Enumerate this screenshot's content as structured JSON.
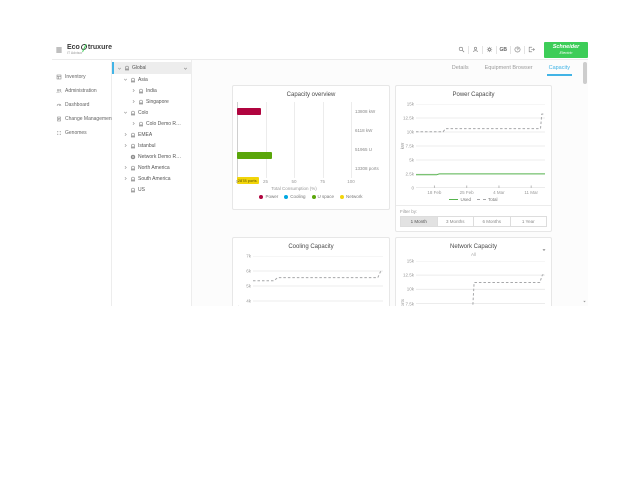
{
  "header": {
    "logo": {
      "brand_prefix": "Eco",
      "brand_suffix": "truxure",
      "sub": "IT Advisor"
    },
    "icons": [
      {
        "name": "search"
      },
      {
        "name": "user"
      },
      {
        "name": "settings"
      },
      {
        "name": "language",
        "label": "GB"
      },
      {
        "name": "help"
      },
      {
        "name": "logout"
      }
    ],
    "schneider": {
      "line1": "Schneider",
      "line2": "Electric"
    }
  },
  "sidebar": {
    "items": [
      {
        "label": "Inventory",
        "icon": "inventory"
      },
      {
        "label": "Administration",
        "icon": "administration"
      },
      {
        "label": "Dashboard",
        "icon": "dashboard"
      },
      {
        "label": "Change Management",
        "icon": "change-management"
      },
      {
        "label": "Genomes",
        "icon": "genomes"
      }
    ]
  },
  "tree": {
    "items": [
      {
        "label": "Global",
        "level": 0,
        "expander": "expanded",
        "icon": "location",
        "selected": true,
        "has_menu": true
      },
      {
        "label": "Asia",
        "level": 1,
        "expander": "expanded",
        "icon": "location"
      },
      {
        "label": "India",
        "level": 2,
        "expander": "collapsed",
        "icon": "location"
      },
      {
        "label": "Singapore",
        "level": 2,
        "expander": "collapsed",
        "icon": "location"
      },
      {
        "label": "Colo",
        "level": 1,
        "expander": "expanded",
        "icon": "location"
      },
      {
        "label": "Colo Demo Room",
        "level": 2,
        "expander": "collapsed",
        "icon": "location"
      },
      {
        "label": "EMEA",
        "level": 1,
        "expander": "collapsed",
        "icon": "location"
      },
      {
        "label": "Istanbul",
        "level": 1,
        "expander": "collapsed",
        "icon": "location"
      },
      {
        "label": "Network Demo Room",
        "level": 1,
        "expander": "none",
        "icon": "globe"
      },
      {
        "label": "North America",
        "level": 1,
        "expander": "collapsed",
        "icon": "location"
      },
      {
        "label": "South America",
        "level": 1,
        "expander": "collapsed",
        "icon": "location"
      },
      {
        "label": "US",
        "level": 1,
        "expander": "none",
        "icon": "location"
      }
    ]
  },
  "tabs": {
    "items": [
      {
        "label": "Details",
        "active": false
      },
      {
        "label": "Equipment Browser",
        "active": false
      },
      {
        "label": "Capacity",
        "active": true
      }
    ]
  },
  "colors": {
    "brand_green": "#3dcd58",
    "accent_blue": "#42b4e6",
    "power_red": "#b0043f",
    "cooling_blue": "#00a7e1",
    "uspace_green": "#5aa60a",
    "network_yellow": "#f2d50a",
    "total_gray": "#a6a7a9",
    "used_green": "#56b44d"
  },
  "chart_data": [
    {
      "id": "capacity_overview",
      "type": "bar",
      "orientation": "horizontal",
      "title": "Capacity overview",
      "categories": [
        "Power",
        "Cooling",
        "U space",
        "Network"
      ],
      "values_percent": [
        21,
        0,
        31,
        19
      ],
      "bar_colors": [
        "#b0043f",
        "#00a7e1",
        "#5aa60a",
        "#f2d50a"
      ],
      "bar_inner_labels": [
        "",
        "",
        "",
        "2878 ports"
      ],
      "capacity_labels": [
        "13808 kW",
        "6118 kW",
        "51965 U",
        "13308 ports"
      ],
      "xlabel": "Total Consumption (%)",
      "xlim": [
        0,
        100
      ],
      "xticks": [
        0,
        25,
        50,
        75,
        100
      ],
      "legend": [
        {
          "label": "Power",
          "color": "#b0043f"
        },
        {
          "label": "Cooling",
          "color": "#00a7e1"
        },
        {
          "label": "U space",
          "color": "#5aa60a"
        },
        {
          "label": "Network",
          "color": "#f2d50a"
        }
      ]
    },
    {
      "id": "power_capacity",
      "type": "line",
      "title": "Power Capacity",
      "ylabel": "kW",
      "ylim": [
        0,
        15000
      ],
      "yticks_top_down": [
        "15k",
        "12.5k",
        "10k",
        "7.5k",
        "5k",
        "2.5k",
        "0"
      ],
      "xticks": [
        {
          "pos": 0.143,
          "label": "18 Feb"
        },
        {
          "pos": 0.393,
          "label": "25 Feb"
        },
        {
          "pos": 0.643,
          "label": "4 Mar"
        },
        {
          "pos": 0.893,
          "label": "11 Mar"
        }
      ],
      "series": [
        {
          "name": "Used",
          "style": "solid",
          "color": "#56b44d",
          "points": [
            [
              0,
              2350
            ],
            [
              0.16,
              2350
            ],
            [
              0.18,
              2520
            ],
            [
              1,
              2520
            ]
          ]
        },
        {
          "name": "Total",
          "style": "dashed",
          "color": "#a6a7a9",
          "points": [
            [
              0,
              10050
            ],
            [
              0.21,
              10050
            ],
            [
              0.23,
              10600
            ],
            [
              0.965,
              10600
            ],
            [
              0.975,
              13200
            ],
            [
              1,
              13250
            ]
          ]
        }
      ],
      "legend_position": "bottom",
      "grid": true,
      "filter": {
        "label": "Filter by:",
        "options": [
          "1 Month",
          "3 Months",
          "6 Months",
          "1 Year"
        ],
        "active": "1 Month"
      }
    },
    {
      "id": "cooling_capacity",
      "type": "line",
      "title": "Cooling Capacity",
      "ylabel": "kW",
      "ylim": [
        0,
        7000
      ],
      "yticks_top_down": [
        "7k",
        "6k",
        "5k",
        "4k",
        "3k",
        "2k",
        "1k",
        "0"
      ],
      "series": [
        {
          "name": "Total",
          "style": "dashed",
          "color": "#a6a7a9",
          "points": [
            [
              0,
              5350
            ],
            [
              0.16,
              5350
            ],
            [
              0.19,
              5560
            ],
            [
              0.96,
              5560
            ],
            [
              0.98,
              5950
            ],
            [
              1,
              5960
            ]
          ]
        }
      ],
      "grid": true
    },
    {
      "id": "network_capacity",
      "type": "line",
      "title": "Network Capacity",
      "subtitle": "All",
      "has_options_dropdown": true,
      "ylabel": "ports",
      "ylim": [
        0,
        15000
      ],
      "yticks_top_down": [
        "15k",
        "12.5k",
        "10k",
        "7.5k",
        "5k",
        "2.5k",
        "0"
      ],
      "series": [
        {
          "name": "Total",
          "style": "dashed",
          "color": "#a6a7a9",
          "points": [
            [
              0,
              2800
            ],
            [
              0.43,
              2800
            ],
            [
              0.45,
              11200
            ],
            [
              0.96,
              11200
            ],
            [
              0.98,
              12550
            ],
            [
              1,
              12600
            ]
          ]
        }
      ],
      "grid": true
    }
  ]
}
